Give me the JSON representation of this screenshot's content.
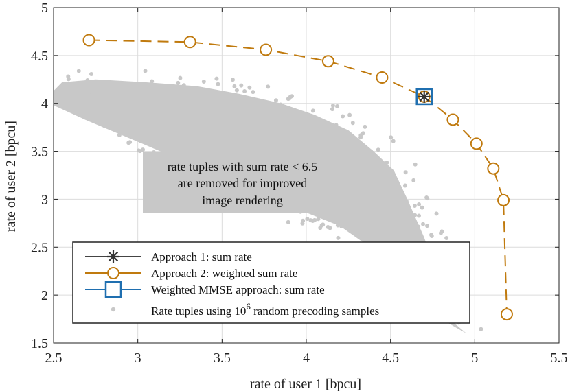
{
  "chart_data": {
    "type": "scatter",
    "xlabel": "rate of user 1 [bpcu]",
    "ylabel": "rate of user 2 [bpcu]",
    "xlim": [
      2.5,
      5.5
    ],
    "ylim": [
      1.5,
      5
    ],
    "xticks": [
      "2.5",
      "3",
      "3.5",
      "4",
      "4.5",
      "5",
      "5.5"
    ],
    "yticks": [
      "1.5",
      "2",
      "2.5",
      "3",
      "3.5",
      "4",
      "4.5",
      "5"
    ],
    "grid": true,
    "legend_position": "bottom-left",
    "annotation": [
      "rate tuples with sum rate < 6.5",
      "are removed for improved",
      "image rendering"
    ],
    "series": [
      {
        "name": "Approach 1: sum rate",
        "marker": "asterisk",
        "color": "#333333",
        "x": [
          4.7
        ],
        "y": [
          4.07
        ]
      },
      {
        "name": "Approach 2: weighted sum rate",
        "marker": "circle",
        "line": "dashed",
        "color": "#C07A0E",
        "x": [
          2.71,
          3.31,
          3.76,
          4.13,
          4.45,
          4.7,
          4.87,
          5.01,
          5.11,
          5.17,
          5.19
        ],
        "y": [
          4.66,
          4.64,
          4.56,
          4.44,
          4.27,
          4.07,
          3.83,
          3.58,
          3.32,
          2.99,
          1.8
        ]
      },
      {
        "name": "Weighted MMSE approach: sum rate",
        "marker": "square",
        "color": "#1F6FB0",
        "x": [
          4.7
        ],
        "y": [
          4.07
        ]
      },
      {
        "name": "Rate tuples using 10",
        "name_sup": "6",
        "name_tail": " random precoding samples",
        "marker": "dot",
        "color": "#C8C8C8",
        "description": "cloud of random rate tuples"
      }
    ]
  }
}
